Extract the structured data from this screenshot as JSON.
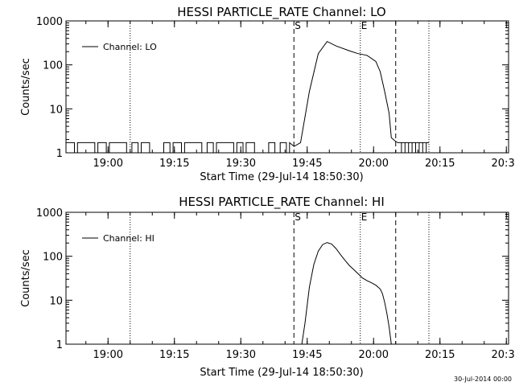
{
  "chart_data": [
    {
      "type": "line",
      "title": "HESSI PARTICLE_RATE Channel: LO",
      "xlabel": "Start Time (29-Jul-14 18:50:30)",
      "ylabel": "Counts/sec",
      "x_unit": "minutes from 18:50:30",
      "xlim": [
        0,
        100
      ],
      "ylim": [
        1,
        1000
      ],
      "y_scale": "log",
      "x_ticks": [
        "19:00",
        "19:15",
        "19:30",
        "19:45",
        "20:00",
        "20:15",
        "20:30"
      ],
      "y_ticks": [
        "1",
        "10",
        "100",
        "1000"
      ],
      "legend": {
        "entries": [
          "Channel: LO"
        ],
        "placement": "top-left"
      },
      "markers": {
        "start_label": "S",
        "end_label": "E"
      },
      "dashed_lines_x": [
        51.5,
        74.5
      ],
      "dotted_lines_x": [
        14.5,
        66.5,
        82.0
      ],
      "series": [
        {
          "name": "Channel: LO",
          "x": [
            0,
            50.5,
            51.5,
            53,
            55,
            57,
            59,
            61,
            64,
            66,
            68,
            70,
            71,
            72,
            73,
            73.5,
            74.5,
            75,
            82
          ],
          "y": [
            1.7,
            1.7,
            1.4,
            1.7,
            25,
            180,
            340,
            270,
            210,
            180,
            165,
            120,
            70,
            25,
            8,
            2.2,
            1.8,
            1.7,
            1.7
          ]
        }
      ]
    },
    {
      "type": "line",
      "title": "HESSI PARTICLE_RATE Channel: HI",
      "xlabel": "Start Time (29-Jul-14 18:50:30)",
      "ylabel": "Counts/sec",
      "x_unit": "minutes from 18:50:30",
      "xlim": [
        0,
        100
      ],
      "ylim": [
        1,
        1000
      ],
      "y_scale": "log",
      "x_ticks": [
        "19:00",
        "19:15",
        "19:30",
        "19:45",
        "20:00",
        "20:15",
        "20:30"
      ],
      "y_ticks": [
        "1",
        "10",
        "100",
        "1000"
      ],
      "legend": {
        "entries": [
          "Channel: HI"
        ],
        "placement": "top-left"
      },
      "markers": {
        "start_label": "S",
        "end_label": "E"
      },
      "dashed_lines_x": [
        51.5,
        74.5
      ],
      "dotted_lines_x": [
        14.5,
        66.5,
        82.0
      ],
      "series": [
        {
          "name": "Channel: HI",
          "x": [
            53.3,
            54,
            55,
            56,
            57,
            58,
            59,
            60,
            61,
            62,
            63,
            64,
            65,
            66,
            67,
            68,
            69,
            70,
            71,
            71.5,
            72,
            72.5,
            73,
            73.5
          ],
          "y": [
            1,
            3,
            20,
            65,
            130,
            185,
            205,
            190,
            150,
            110,
            82,
            62,
            50,
            40,
            32,
            28,
            25,
            22,
            18,
            14,
            9,
            5,
            2.5,
            1
          ]
        }
      ]
    }
  ],
  "footer": {
    "stamp": "30-Jul-2014 00:00"
  }
}
